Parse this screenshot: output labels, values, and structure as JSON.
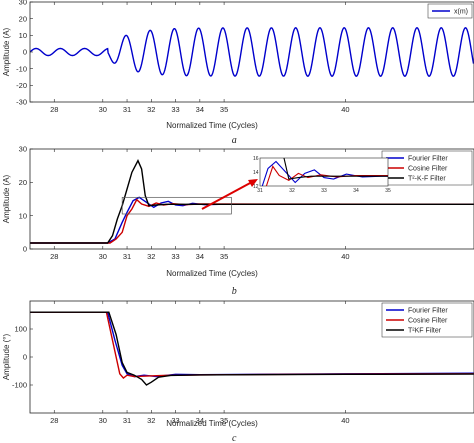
{
  "chart_data": [
    {
      "id": "a",
      "type": "line",
      "caption": "a",
      "xlabel": "Normalized Time (Cycles)",
      "ylabel": "Amplitude (A)",
      "xlim": [
        27.0,
        45.3
      ],
      "ylim": [
        -30,
        30
      ],
      "xticks": [
        28,
        30,
        31,
        32,
        33,
        34,
        35,
        40
      ],
      "yticks": [
        -30,
        -20,
        -10,
        0,
        10,
        20,
        30
      ],
      "grid": false,
      "legend_position": "top-right",
      "series": [
        {
          "name": "x(m)",
          "color": "#0000cc",
          "signal": {
            "pre_amp": 2.1,
            "pre_offset": 0,
            "fault_at": 30.2,
            "post_amp": 14.5,
            "post_offset": 0,
            "decay_amp": 10.5,
            "decay_tau": 0.9,
            "phase": 0.0
          }
        }
      ]
    },
    {
      "id": "b",
      "type": "line",
      "caption": "b",
      "xlabel": "Normalized Time (Cycles)",
      "ylabel": "Amplitude (A)",
      "xlim": [
        27.0,
        45.3
      ],
      "ylim": [
        0,
        30
      ],
      "xticks": [
        28,
        30,
        31,
        32,
        33,
        34,
        35,
        40
      ],
      "yticks": [
        0,
        10,
        20,
        30
      ],
      "grid": false,
      "legend_position": "top-right",
      "series": [
        {
          "name": "Fourier Filter",
          "color": "#0000cc",
          "points": [
            [
              27,
              1.8
            ],
            [
              30.2,
              1.8
            ],
            [
              30.5,
              3
            ],
            [
              30.8,
              8
            ],
            [
              31.0,
              11
            ],
            [
              31.25,
              14.5
            ],
            [
              31.5,
              15.5
            ],
            [
              31.8,
              14
            ],
            [
              32.1,
              12.5
            ],
            [
              32.4,
              13.8
            ],
            [
              32.7,
              14.3
            ],
            [
              33.0,
              13.2
            ],
            [
              33.3,
              13
            ],
            [
              33.7,
              13.7
            ],
            [
              34.2,
              13.3
            ],
            [
              34.8,
              13.4
            ],
            [
              35.5,
              13.4
            ],
            [
              45.3,
              13.4
            ]
          ]
        },
        {
          "name": "Cosine Filter",
          "color": "#cc0000",
          "points": [
            [
              27,
              1.8
            ],
            [
              30.3,
              1.8
            ],
            [
              30.55,
              3
            ],
            [
              30.8,
              5
            ],
            [
              31.0,
              10
            ],
            [
              31.2,
              12
            ],
            [
              31.4,
              14.8
            ],
            [
              31.6,
              13.5
            ],
            [
              31.9,
              12.8
            ],
            [
              32.2,
              13.8
            ],
            [
              32.5,
              13.2
            ],
            [
              32.9,
              13.6
            ],
            [
              33.4,
              13.3
            ],
            [
              34,
              13.5
            ],
            [
              45.3,
              13.4
            ]
          ]
        },
        {
          "name": "T²-K-F Filter",
          "color": "#000000",
          "points": [
            [
              27,
              1.8
            ],
            [
              30.2,
              1.8
            ],
            [
              30.4,
              4
            ],
            [
              30.6,
              9
            ],
            [
              30.8,
              13
            ],
            [
              31.0,
              18
            ],
            [
              31.2,
              23
            ],
            [
              31.45,
              26.5
            ],
            [
              31.6,
              24
            ],
            [
              31.75,
              16
            ],
            [
              31.9,
              13
            ],
            [
              32.2,
              13.2
            ],
            [
              32.6,
              13.4
            ],
            [
              45.3,
              13.4
            ]
          ]
        }
      ],
      "inset": {
        "xlim": [
          31,
          35
        ],
        "ylim": [
          12,
          16
        ],
        "xticks": [
          31,
          32,
          33,
          34,
          35
        ],
        "yticks": [
          12,
          14,
          16
        ],
        "source_rect_data": {
          "x0": 30.8,
          "x1": 35.3,
          "y0": 10.5,
          "y1": 15.5
        }
      }
    },
    {
      "id": "c",
      "type": "line",
      "caption": "c",
      "xlabel": "Normalized Time (Cycles)",
      "ylabel": "Amplitude (°)",
      "xlim": [
        27.0,
        45.3
      ],
      "ylim": [
        -200,
        200
      ],
      "xticks": [
        28,
        30,
        31,
        32,
        33,
        34,
        35,
        40
      ],
      "yticks": [
        -100,
        0,
        100
      ],
      "grid": false,
      "legend_position": "top-right",
      "series": [
        {
          "name": "Fourier Filter",
          "color": "#0000cc",
          "points": [
            [
              27,
              160
            ],
            [
              30.2,
              160
            ],
            [
              30.5,
              60
            ],
            [
              30.8,
              -30
            ],
            [
              31.0,
              -60
            ],
            [
              31.3,
              -70
            ],
            [
              31.7,
              -65
            ],
            [
              32.2,
              -70
            ],
            [
              33,
              -62
            ],
            [
              34,
              -63
            ],
            [
              40,
              -60
            ],
            [
              45.3,
              -58
            ]
          ]
        },
        {
          "name": "Cosine Filter",
          "color": "#cc0000",
          "points": [
            [
              27,
              160
            ],
            [
              30.15,
              160
            ],
            [
              30.45,
              40
            ],
            [
              30.7,
              -60
            ],
            [
              30.85,
              -75
            ],
            [
              31.0,
              -65
            ],
            [
              31.3,
              -70
            ],
            [
              31.8,
              -68
            ],
            [
              32.5,
              -66
            ],
            [
              34,
              -64
            ],
            [
              40,
              -61
            ],
            [
              45.3,
              -60
            ]
          ]
        },
        {
          "name": "T²KF Filter",
          "color": "#000000",
          "points": [
            [
              27,
              160
            ],
            [
              30.25,
              160
            ],
            [
              30.55,
              80
            ],
            [
              30.8,
              -20
            ],
            [
              31.0,
              -55
            ],
            [
              31.3,
              -65
            ],
            [
              31.6,
              -80
            ],
            [
              31.8,
              -100
            ],
            [
              32.0,
              -90
            ],
            [
              32.3,
              -72
            ],
            [
              32.8,
              -66
            ],
            [
              34,
              -64
            ],
            [
              40,
              -62
            ],
            [
              45.3,
              -61
            ]
          ]
        }
      ]
    }
  ]
}
